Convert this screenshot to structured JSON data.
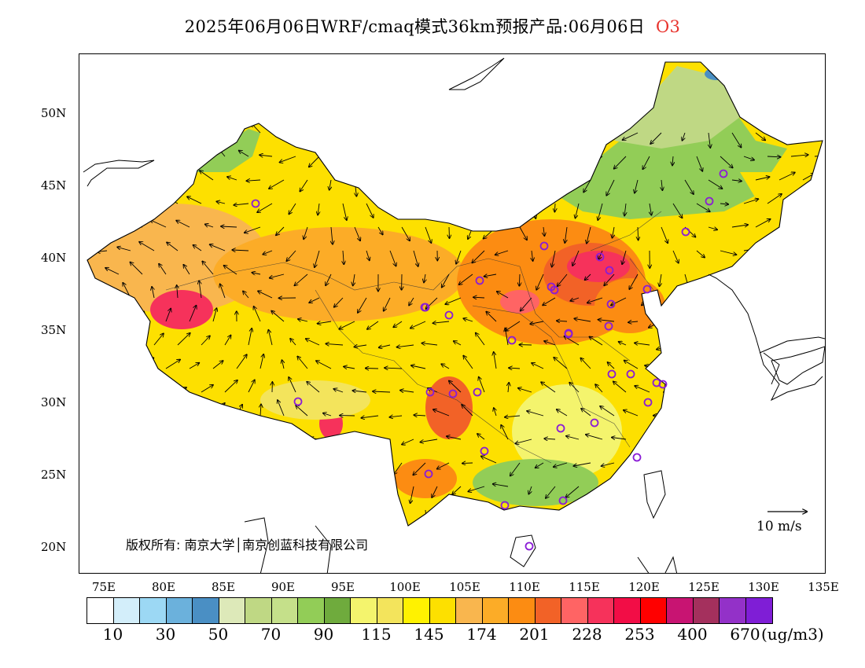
{
  "title": {
    "text": "2025年06月06日WRF/cmaq模式36km预报产品:06月06日",
    "pollutant": "O3"
  },
  "lat_labels": [
    "50N",
    "45N",
    "40N",
    "35N",
    "30N",
    "25N",
    "20N"
  ],
  "lon_labels": [
    "75E",
    "80E",
    "85E",
    "90E",
    "95E",
    "100E",
    "105E",
    "110E",
    "115E",
    "120E",
    "125E",
    "130E",
    "135E"
  ],
  "copyright": "版权所有: 南京大学│南京创蓝科技有限公司",
  "wind_scale": "10 m/s",
  "colorbar": {
    "colors": [
      "#ffffff",
      "#d3eefa",
      "#9cd8f4",
      "#6bb1dc",
      "#4a8fc4",
      "#dde9b9",
      "#bfd884",
      "#c5e08a",
      "#92cd57",
      "#6fab3d",
      "#f4f46d",
      "#f3e45c",
      "#fff200",
      "#fde000",
      "#f9b64e",
      "#fcac27",
      "#fc8c12",
      "#f26227",
      "#ff6464",
      "#f6325b",
      "#f20d46",
      "#ff0000",
      "#c81472",
      "#a4305d",
      "#9331c8",
      "#7f1ed6"
    ],
    "labels": [
      "10",
      "30",
      "50",
      "70",
      "90",
      "115",
      "145",
      "174",
      "201",
      "228",
      "253",
      "400",
      "670"
    ],
    "unit": "(ug/m3)"
  }
}
